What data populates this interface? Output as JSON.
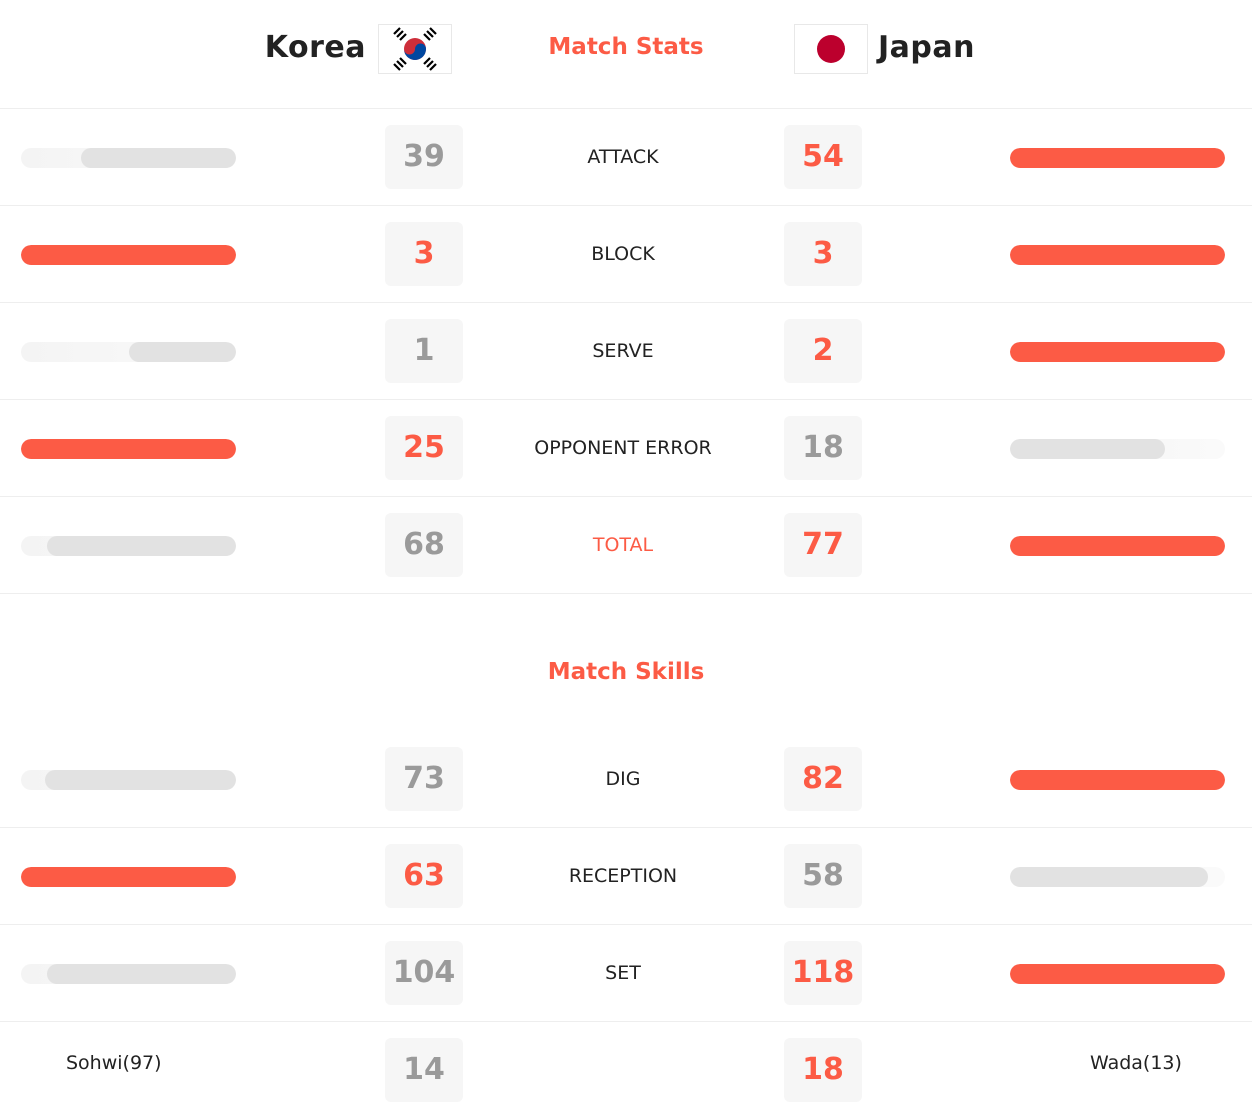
{
  "teams": {
    "home": {
      "name": "Korea",
      "flag_icon": "south-korea-flag-icon"
    },
    "away": {
      "name": "Japan",
      "flag_icon": "japan-flag-icon"
    }
  },
  "colors": {
    "accent": "#fc5b45",
    "bar_trail": "#e2e2e2",
    "number_trail": "#9a9a9a"
  },
  "match_stats": {
    "title": "Match Stats",
    "rows": [
      {
        "label": "ATTACK",
        "home": "39",
        "away": "54",
        "home_bar_fraction": 0.72,
        "away_bar_fraction": 1.0,
        "leader": "away"
      },
      {
        "label": "BLOCK",
        "home": "3",
        "away": "3",
        "home_bar_fraction": 1.0,
        "away_bar_fraction": 1.0,
        "leader": "both"
      },
      {
        "label": "SERVE",
        "home": "1",
        "away": "2",
        "home_bar_fraction": 0.5,
        "away_bar_fraction": 1.0,
        "leader": "away"
      },
      {
        "label": "OPPONENT ERROR",
        "home": "25",
        "away": "18",
        "home_bar_fraction": 1.0,
        "away_bar_fraction": 0.72,
        "leader": "home"
      },
      {
        "label": "TOTAL",
        "home": "68",
        "away": "77",
        "home_bar_fraction": 0.88,
        "away_bar_fraction": 1.0,
        "leader": "away",
        "accent_label": true
      }
    ]
  },
  "match_skills": {
    "title": "Match Skills",
    "rows": [
      {
        "label": "DIG",
        "home": "73",
        "away": "82",
        "home_bar_fraction": 0.89,
        "away_bar_fraction": 1.0,
        "leader": "away"
      },
      {
        "label": "RECEPTION",
        "home": "63",
        "away": "58",
        "home_bar_fraction": 1.0,
        "away_bar_fraction": 0.92,
        "leader": "home"
      },
      {
        "label": "SET",
        "home": "104",
        "away": "118",
        "home_bar_fraction": 0.88,
        "away_bar_fraction": 1.0,
        "leader": "away"
      }
    ],
    "leaders": {
      "home_name": "Sohwi(97)",
      "home_value": "14",
      "away_name": "Wada(13)",
      "away_value": "18"
    }
  }
}
